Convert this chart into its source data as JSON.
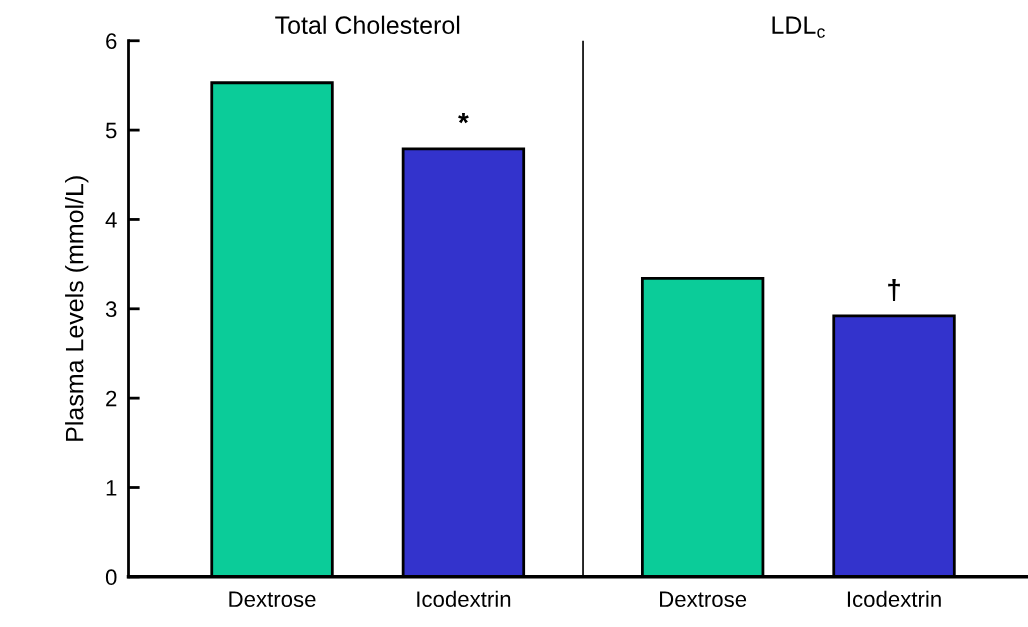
{
  "chart_data": {
    "type": "bar",
    "ylabel": "Plasma Levels (mmol/L)",
    "categories": [
      "Dextrose",
      "Icodextrin",
      "Dextrose",
      "Icodextrin"
    ],
    "values": [
      5.53,
      4.79,
      3.34,
      2.92
    ],
    "colors": [
      "#0bcc99",
      "#3333cc",
      "#0bcc99",
      "#3333cc"
    ],
    "ylim": [
      0,
      6
    ],
    "yticks": [
      0,
      1,
      2,
      3,
      4,
      5,
      6
    ],
    "grid": false,
    "annotations": [
      "Total Cholesterol",
      "LDL$_{c}$",
      "*",
      "†"
    ]
  }
}
